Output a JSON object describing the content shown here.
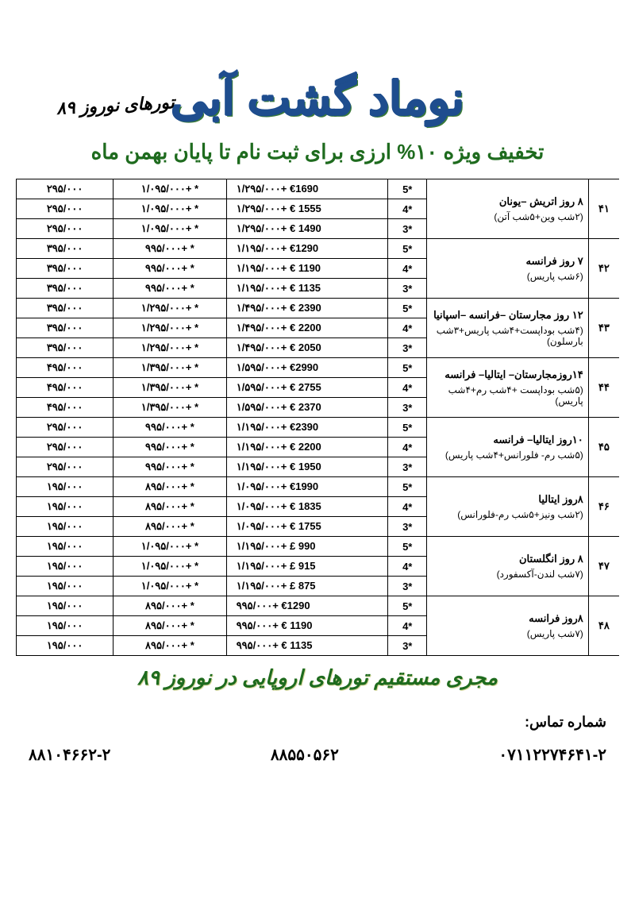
{
  "header_top": "تورهای نوروز ۸۹",
  "company_name": "نوماد گشت آبی",
  "discount_line": "تخفیف ویژه ۱۰% ارزی برای ثبت نام تا پایان بهمن ماه",
  "footer_tag": "مجری مستقیم تورهای اروپایی در نوروز ۸۹",
  "contact_label": "شماره تماس:",
  "phones": [
    "۸۸۱۰۴۶۶۲-۲",
    "۸۸۵۵۰۵۶۲",
    "۰۷۱۱۲۲۷۴۶۴۱-۲"
  ],
  "colors": {
    "title": "#1e4d8e",
    "title_shadow": "#3a7a3a",
    "green": "#1e6b1e",
    "border": "#000000",
    "bg": "#ffffff"
  },
  "tours": [
    {
      "idx": "۴۱",
      "title": "۸ روز اتریش –یونان",
      "sub": "(۲شب وین+۵شب آتن)",
      "rows": [
        {
          "star": "5*",
          "euro": "۱/۲۹۵/۰۰۰+ €1690",
          "rial": "۱/۰۹۵/۰۰۰+  *",
          "extra": "۲۹۵/۰۰۰"
        },
        {
          "star": "4*",
          "euro": "۱/۲۹۵/۰۰۰+ €   1555",
          "rial": "۱/۰۹۵/۰۰۰+  *",
          "extra": "۲۹۵/۰۰۰"
        },
        {
          "star": "3*",
          "euro": "۱/۲۹۵/۰۰۰+ €   1490",
          "rial": "۱/۰۹۵/۰۰۰+  *",
          "extra": "۲۹۵/۰۰۰"
        }
      ]
    },
    {
      "idx": "۴۲",
      "title": "۷ روز فرانسه",
      "sub": "(۶شب پاریس)",
      "rows": [
        {
          "star": "5*",
          "euro": "۱/۱۹۵/۰۰۰+ €1290",
          "rial": "۹۹۵/۰۰۰+  *",
          "extra": "۳۹۵/۰۰۰"
        },
        {
          "star": "4*",
          "euro": "۱/۱۹۵/۰۰۰+ €   1190",
          "rial": "۹۹۵/۰۰۰+  *",
          "extra": "۳۹۵/۰۰۰"
        },
        {
          "star": "3*",
          "euro": "۱/۱۹۵/۰۰۰+ €   1135",
          "rial": "۹۹۵/۰۰۰+  *",
          "extra": "۳۹۵/۰۰۰"
        }
      ]
    },
    {
      "idx": "۴۳",
      "title": "۱۲ روز مجارستان –فرانسه –اسپانیا",
      "sub": "(۴شب بوداپست+۴شب پاریس+۳شب بارسلون)",
      "rows": [
        {
          "star": "5*",
          "euro": "۱/۴۹۵/۰۰۰+ €   2390",
          "rial": "۱/۲۹۵/۰۰۰+  *",
          "extra": "۳۹۵/۰۰۰"
        },
        {
          "star": "4*",
          "euro": "۱/۴۹۵/۰۰۰+ €   2200",
          "rial": "۱/۲۹۵/۰۰۰+  *",
          "extra": "۳۹۵/۰۰۰"
        },
        {
          "star": "3*",
          "euro": "۱/۴۹۵/۰۰۰+ €   2050",
          "rial": "۱/۲۹۵/۰۰۰+  *",
          "extra": "۳۹۵/۰۰۰"
        }
      ]
    },
    {
      "idx": "۴۴",
      "title": "۱۴روزمجارستان– ایتالیا– فرانسه",
      "sub": "(۵شب بوداپست +۴شب رم+۴شب پاریس)",
      "rows": [
        {
          "star": "5*",
          "euro": "۱/۵۹۵/۰۰۰+ €2990",
          "rial": "۱/۳۹۵/۰۰۰+  *",
          "extra": "۴۹۵/۰۰۰"
        },
        {
          "star": "4*",
          "euro": "۱/۵۹۵/۰۰۰+ €   2755",
          "rial": "۱/۳۹۵/۰۰۰+  *",
          "extra": "۴۹۵/۰۰۰"
        },
        {
          "star": "3*",
          "euro": "۱/۵۹۵/۰۰۰+ €   2370",
          "rial": "۱/۳۹۵/۰۰۰+  *",
          "extra": "۴۹۵/۰۰۰"
        }
      ]
    },
    {
      "idx": "۴۵",
      "title": "۱۰روز ایتالیا– فرانسه",
      "sub": "(۵شب رم- فلورانس+۴شب پاریس)",
      "rows": [
        {
          "star": "5*",
          "euro": "۱/۱۹۵/۰۰۰+ €2390",
          "rial": "۹۹۵/۰۰۰+  *",
          "extra": "۲۹۵/۰۰۰"
        },
        {
          "star": "4*",
          "euro": "۱/۱۹۵/۰۰۰+ €   2200",
          "rial": "۹۹۵/۰۰۰+  *",
          "extra": "۲۹۵/۰۰۰"
        },
        {
          "star": "3*",
          "euro": "۱/۱۹۵/۰۰۰+ €   1950",
          "rial": "۹۹۵/۰۰۰+  *",
          "extra": "۲۹۵/۰۰۰"
        }
      ]
    },
    {
      "idx": "۴۶",
      "title": "۸روز ایتالیا",
      "sub": "(۲شب ونیز+۵شب رم-فلورانس)",
      "rows": [
        {
          "star": "5*",
          "euro": "۱/۰۹۵/۰۰۰+ €1990",
          "rial": "۸۹۵/۰۰۰+  *",
          "extra": "۱۹۵/۰۰۰"
        },
        {
          "star": "4*",
          "euro": "۱/۰۹۵/۰۰۰+ €   1835",
          "rial": "۸۹۵/۰۰۰+  *",
          "extra": "۱۹۵/۰۰۰"
        },
        {
          "star": "3*",
          "euro": "۱/۰۹۵/۰۰۰+ € 1755",
          "rial": "۸۹۵/۰۰۰+  *",
          "extra": "۱۹۵/۰۰۰"
        }
      ]
    },
    {
      "idx": "۴۷",
      "title": "۸ روز انگلستان",
      "sub": "(۷شب لندن-آکسفورد)",
      "rows": [
        {
          "star": "5*",
          "euro": "۱/۱۹۵/۰۰۰+ £     990",
          "rial": "۱/۰۹۵/۰۰۰+   *",
          "extra": "۱۹۵/۰۰۰"
        },
        {
          "star": "4*",
          "euro": "۱/۱۹۵/۰۰۰+ £     915",
          "rial": "۱/۰۹۵/۰۰۰+   *",
          "extra": "۱۹۵/۰۰۰"
        },
        {
          "star": "3*",
          "euro": "۱/۱۹۵/۰۰۰+ £     875",
          "rial": "۱/۰۹۵/۰۰۰+   *",
          "extra": "۱۹۵/۰۰۰"
        }
      ]
    },
    {
      "idx": "۴۸",
      "title": "۸روز فرانسه",
      "sub": "(۷شب پاریس)",
      "rows": [
        {
          "star": "5*",
          "euro": "۹۹۵/۰۰۰+ €1290",
          "rial": "۸۹۵/۰۰۰+  *",
          "extra": "۱۹۵/۰۰۰"
        },
        {
          "star": "4*",
          "euro": "۹۹۵/۰۰۰+ €   1190",
          "rial": "۸۹۵/۰۰۰+  *",
          "extra": "۱۹۵/۰۰۰"
        },
        {
          "star": "3*",
          "euro": "۹۹۵/۰۰۰+ €   1135",
          "rial": "۸۹۵/۰۰۰+  *",
          "extra": "۱۹۵/۰۰۰"
        }
      ]
    }
  ]
}
